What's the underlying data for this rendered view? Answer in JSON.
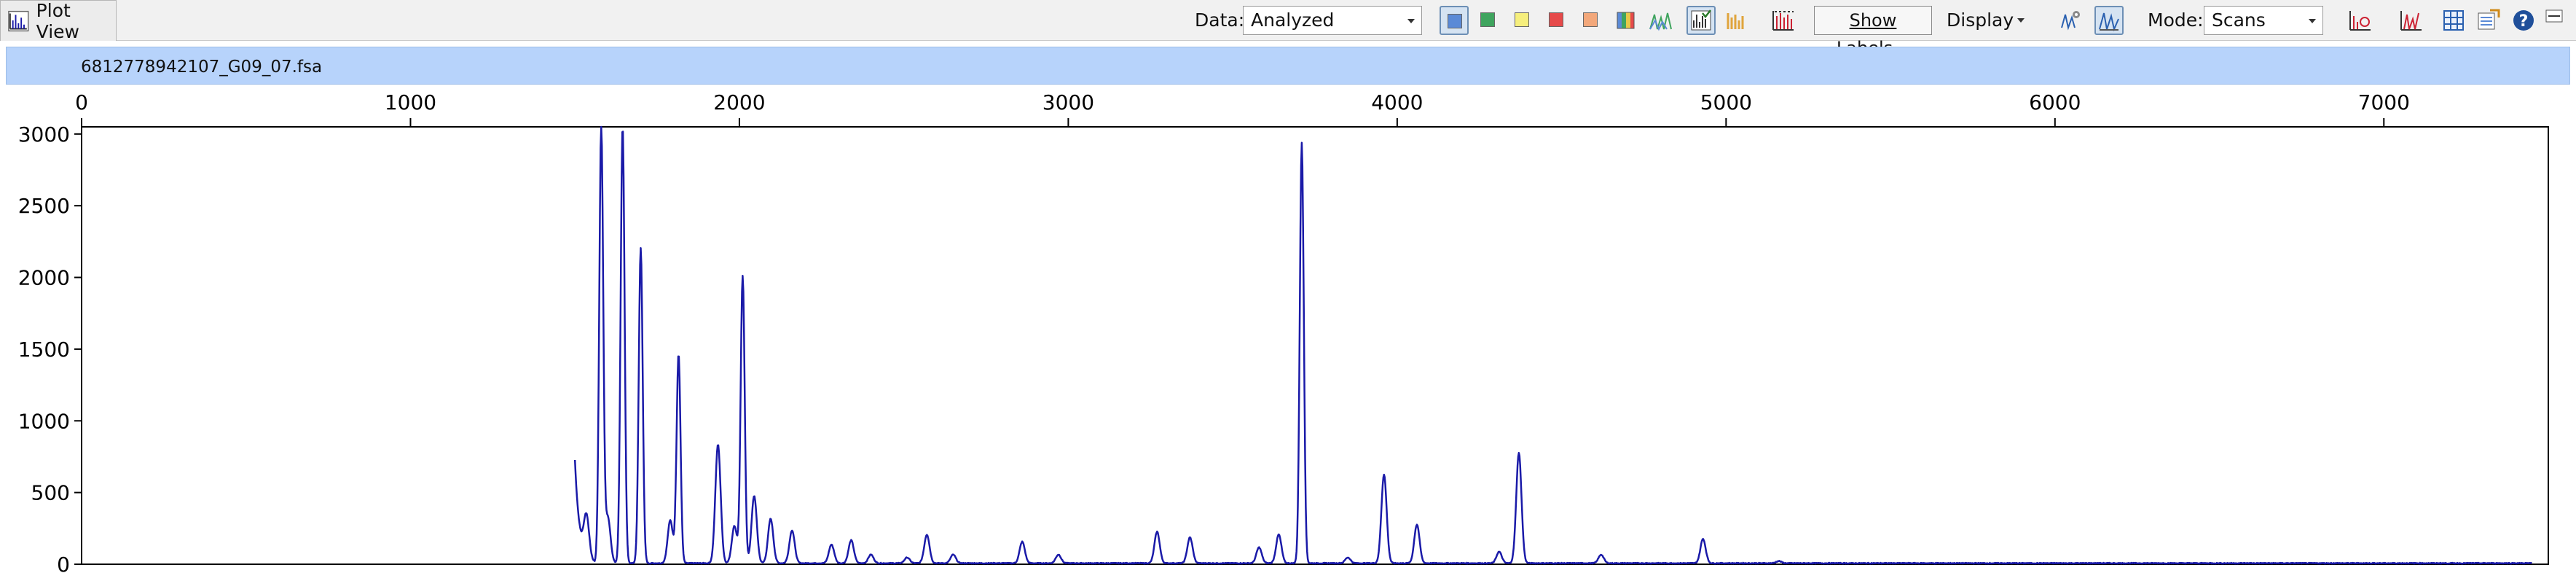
{
  "toolbar": {
    "tab_label": "Plot View",
    "data_label": "Data:",
    "data_value": "Analyzed",
    "show_labels": "Show Labels...",
    "display_label": "Display",
    "mode_label": "Mode:",
    "mode_value": "Scans",
    "colors": {
      "blue": "#5b8ad6",
      "green": "#3fa45e",
      "yellow": "#f6ef7d",
      "red": "#e64a4a",
      "orange": "#f3a87b"
    }
  },
  "file": {
    "name": "6812778942107_G09_07.fsa"
  },
  "chart_data": {
    "type": "line",
    "xlim": [
      0,
      7500
    ],
    "ylim": [
      0,
      3050
    ],
    "x_ticks": [
      0,
      1000,
      2000,
      3000,
      4000,
      5000,
      6000,
      7000
    ],
    "y_ticks": [
      0,
      500,
      1000,
      1500,
      2000,
      2500,
      3000
    ],
    "x_axis_position": "top",
    "series_color": "#1a1aa8",
    "trace_start": 1500,
    "trace_end": 7450,
    "start_level": 720,
    "peaks": [
      {
        "x": 1535,
        "y": 290
      },
      {
        "x": 1580,
        "y": 3050
      },
      {
        "x": 1600,
        "y": 320
      },
      {
        "x": 1645,
        "y": 3050
      },
      {
        "x": 1700,
        "y": 2200
      },
      {
        "x": 1790,
        "y": 300
      },
      {
        "x": 1815,
        "y": 1460
      },
      {
        "x": 1935,
        "y": 830
      },
      {
        "x": 1985,
        "y": 260
      },
      {
        "x": 2010,
        "y": 2000
      },
      {
        "x": 2045,
        "y": 470
      },
      {
        "x": 2095,
        "y": 310
      },
      {
        "x": 2160,
        "y": 230
      },
      {
        "x": 2280,
        "y": 130
      },
      {
        "x": 2340,
        "y": 160
      },
      {
        "x": 2400,
        "y": 60
      },
      {
        "x": 2510,
        "y": 40
      },
      {
        "x": 2570,
        "y": 200
      },
      {
        "x": 2650,
        "y": 60
      },
      {
        "x": 2860,
        "y": 150
      },
      {
        "x": 2970,
        "y": 60
      },
      {
        "x": 3270,
        "y": 220
      },
      {
        "x": 3370,
        "y": 180
      },
      {
        "x": 3580,
        "y": 110
      },
      {
        "x": 3640,
        "y": 200
      },
      {
        "x": 3710,
        "y": 2930
      },
      {
        "x": 3850,
        "y": 40
      },
      {
        "x": 3960,
        "y": 620
      },
      {
        "x": 4060,
        "y": 270
      },
      {
        "x": 4310,
        "y": 80
      },
      {
        "x": 4370,
        "y": 770
      },
      {
        "x": 4620,
        "y": 60
      },
      {
        "x": 4930,
        "y": 170
      },
      {
        "x": 5160,
        "y": 15
      }
    ]
  }
}
